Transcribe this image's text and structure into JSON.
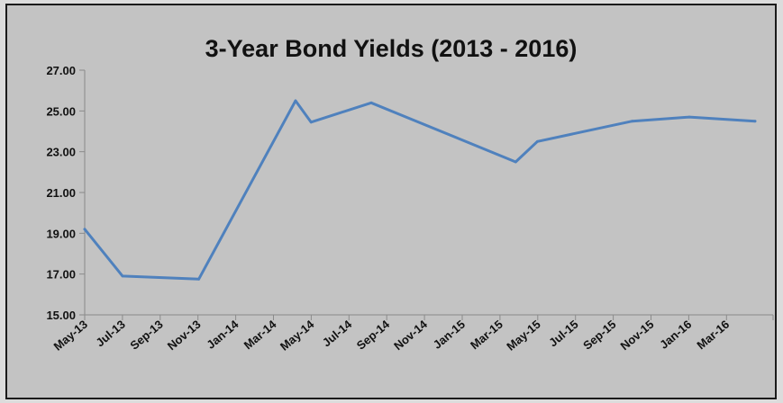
{
  "chart_data": {
    "type": "line",
    "title": "3-Year Bond Yields (2013 - 2016)",
    "xlabel": "",
    "ylabel": "",
    "ylim": [
      15,
      27
    ],
    "y_ticks": [
      "15.00",
      "17.00",
      "19.00",
      "21.00",
      "23.00",
      "25.00",
      "27.00"
    ],
    "categories": [
      "May-13",
      "Jul-13",
      "Sep-13",
      "Nov-13",
      "Jan-14",
      "Mar-14",
      "May-14",
      "Jul-14",
      "Sep-14",
      "Nov-14",
      "Jan-15",
      "Mar-15",
      "May-15",
      "Jul-15",
      "Sep-15",
      "Nov-15",
      "Jan-16",
      "Mar-16"
    ],
    "grid": false,
    "legend": "none",
    "series": [
      {
        "color": "#4f81bd",
        "points": [
          {
            "x": "2013-05-15",
            "y": 19.2
          },
          {
            "x": "2013-07-15",
            "y": 16.9
          },
          {
            "x": "2013-11-15",
            "y": 16.75
          },
          {
            "x": "2014-04-20",
            "y": 25.5
          },
          {
            "x": "2014-05-15",
            "y": 24.45
          },
          {
            "x": "2014-08-20",
            "y": 25.4
          },
          {
            "x": "2015-04-10",
            "y": 22.5
          },
          {
            "x": "2015-05-15",
            "y": 23.5
          },
          {
            "x": "2015-10-15",
            "y": 24.5
          },
          {
            "x": "2016-01-15",
            "y": 24.7
          },
          {
            "x": "2016-04-30",
            "y": 24.5
          }
        ]
      }
    ]
  }
}
